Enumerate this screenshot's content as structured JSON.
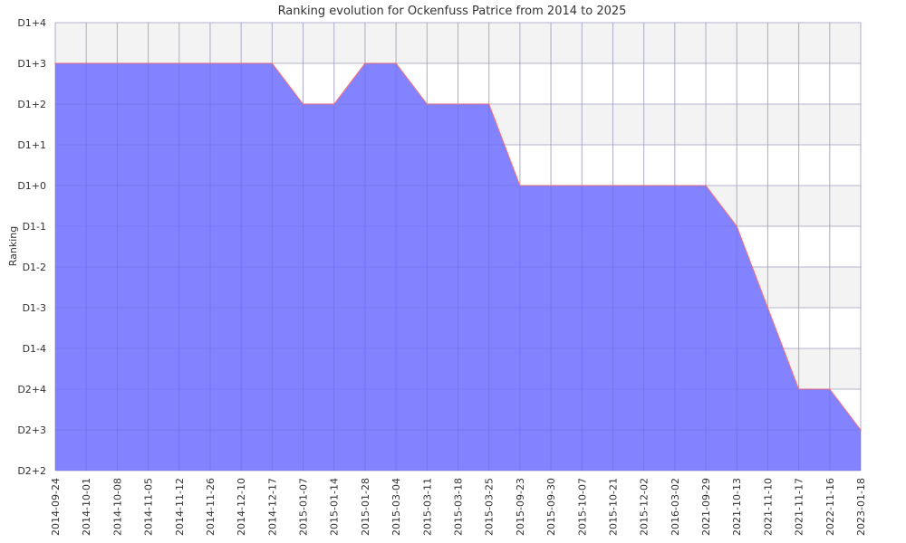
{
  "chart_data": {
    "type": "area",
    "title": "Ranking evolution for Ockenfuss Patrice from 2014 to 2025",
    "ylabel": "Ranking",
    "xlabel": "",
    "y_ticks": [
      "D2+2",
      "D2+3",
      "D2+4",
      "D1-4",
      "D1-3",
      "D1-2",
      "D1-1",
      "D1+0",
      "D1+1",
      "D1+2",
      "D1+3",
      "D1+4"
    ],
    "x": [
      "2014-09-24",
      "2014-10-01",
      "2014-10-08",
      "2014-11-05",
      "2014-11-12",
      "2014-11-26",
      "2014-12-10",
      "2014-12-17",
      "2015-01-07",
      "2015-01-14",
      "2015-01-28",
      "2015-03-04",
      "2015-03-11",
      "2015-03-18",
      "2015-03-25",
      "2015-09-23",
      "2015-09-30",
      "2015-10-07",
      "2015-10-21",
      "2015-12-02",
      "2016-03-02",
      "2021-09-29",
      "2021-10-13",
      "2021-11-10",
      "2021-11-17",
      "2022-11-16",
      "2023-01-18"
    ],
    "values": [
      "D1+3",
      "D1+3",
      "D1+3",
      "D1+3",
      "D1+3",
      "D1+3",
      "D1+3",
      "D1+3",
      "D1+2",
      "D1+2",
      "D1+3",
      "D1+3",
      "D1+2",
      "D1+2",
      "D1+2",
      "D1+0",
      "D1+0",
      "D1+0",
      "D1+0",
      "D1+0",
      "D1+0",
      "D1+0",
      "D1-1",
      "D1-3",
      "D2+4",
      "D2+4",
      "D2+3"
    ],
    "grid": true,
    "colors": {
      "fill": "#7f7fff",
      "line": "#ff6f6f",
      "band": "#f3f3f3",
      "grid": "#cccccc"
    }
  }
}
